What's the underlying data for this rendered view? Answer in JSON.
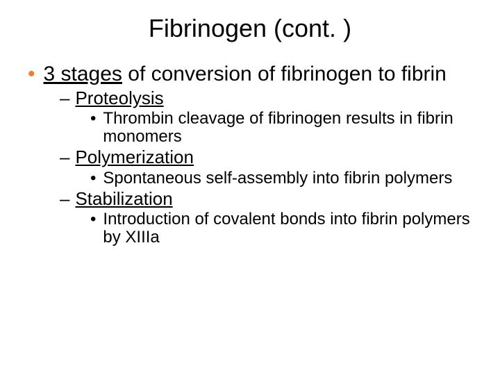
{
  "title": "Fibrinogen (cont. )",
  "bullet_color": "#ed7d31",
  "text_color": "#000000",
  "background_color": "#ffffff",
  "lvl1": {
    "bullet": "•",
    "emph": "3 stages",
    "rest": " of conversion of fibrinogen to fibrin"
  },
  "stages": [
    {
      "dash": "–",
      "name": "Proteolysis",
      "detail_bullet": "•",
      "detail": "Thrombin cleavage of fibrinogen results in fibrin monomers"
    },
    {
      "dash": "–",
      "name": "Polymerization",
      "detail_bullet": "•",
      "detail": "Spontaneous self-assembly into fibrin polymers"
    },
    {
      "dash": "–",
      "name": "Stabilization",
      "detail_bullet": "•",
      "detail": "Introduction of covalent bonds into fibrin polymers by XIIIa"
    }
  ],
  "font_sizes_pt": {
    "title": 27,
    "lvl1": 22,
    "lvl2": 19,
    "lvl3": 18
  }
}
